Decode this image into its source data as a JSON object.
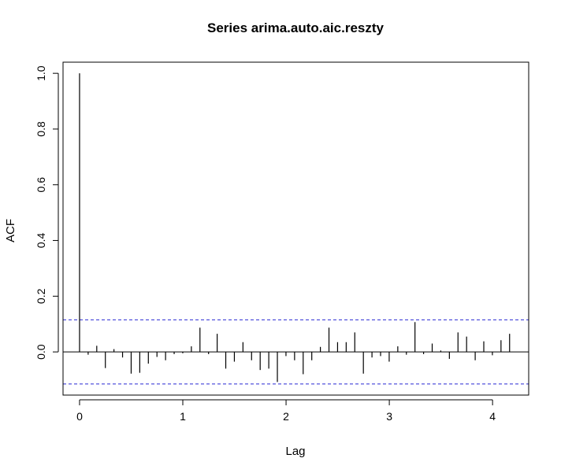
{
  "chart_data": {
    "type": "bar",
    "title": "Series  arima.auto.aic.reszty",
    "xlabel": "Lag",
    "ylabel": "ACF",
    "x_ticks": [
      0,
      1,
      2,
      3,
      4
    ],
    "y_ticks": [
      0.0,
      0.2,
      0.4,
      0.6,
      0.8,
      1.0
    ],
    "y_tick_labels": [
      "0.0",
      "0.2",
      "0.4",
      "0.6",
      "0.8",
      "1.0"
    ],
    "xlim": [
      -0.16,
      4.35
    ],
    "ylim": [
      -0.155,
      1.04
    ],
    "lag_step": 0.0833,
    "acf": [
      1.0,
      -0.01,
      0.022,
      -0.058,
      0.01,
      -0.02,
      -0.078,
      -0.075,
      -0.042,
      -0.018,
      -0.03,
      -0.008,
      -0.005,
      0.02,
      0.087,
      -0.008,
      0.065,
      -0.06,
      -0.035,
      0.035,
      -0.03,
      -0.065,
      -0.06,
      -0.108,
      -0.015,
      -0.03,
      -0.08,
      -0.03,
      0.018,
      0.087,
      0.035,
      0.035,
      0.07,
      -0.078,
      -0.02,
      -0.015,
      -0.035,
      0.02,
      -0.01,
      0.107,
      -0.008,
      0.03,
      0.005,
      -0.025,
      0.07,
      0.055,
      -0.03,
      0.038,
      -0.012,
      0.042,
      0.065
    ],
    "ci": 0.115,
    "ci_color": "#2a2ad4",
    "bar_color": "#000000"
  }
}
